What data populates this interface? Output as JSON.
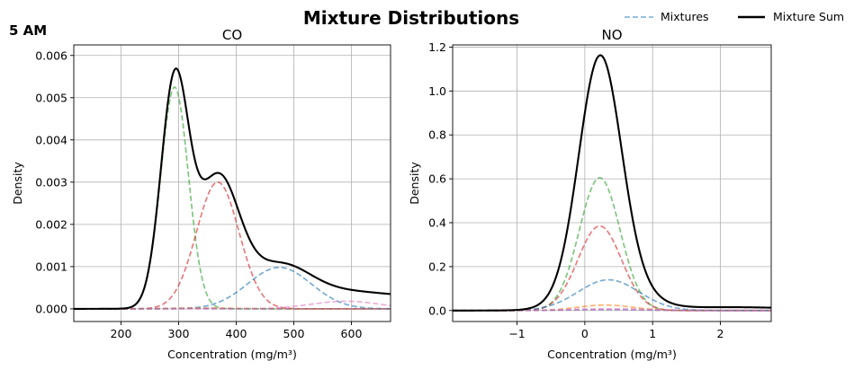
{
  "figure": {
    "title": "Mixture Distributions",
    "corner_label": "5 AM",
    "legend": [
      {
        "label": "Mixtures",
        "style": "dashed",
        "color": "#1f77b4"
      },
      {
        "label": "Mixture Sum",
        "style": "solid",
        "color": "#000000"
      }
    ]
  },
  "chart_data": [
    {
      "type": "line",
      "title": "CO",
      "xlabel": "Concentration (mg/m³)",
      "ylabel": "Density",
      "xlim": [
        118,
        668
      ],
      "ylim": [
        -0.0003,
        0.00625
      ],
      "xticks": [
        200,
        300,
        400,
        500,
        600
      ],
      "xtick_labels": [
        "200",
        "300",
        "400",
        "500",
        "600"
      ],
      "yticks": [
        0,
        0.001,
        0.002,
        0.003,
        0.004,
        0.005,
        0.006
      ],
      "ytick_labels": [
        "0.000",
        "0.001",
        "0.002",
        "0.003",
        "0.004",
        "0.005",
        "0.006"
      ],
      "grid": true,
      "components": [
        {
          "mean": 293,
          "sd": 24,
          "peak": 0.00525,
          "color": "#2ca02c"
        },
        {
          "mean": 368,
          "sd": 37,
          "peak": 0.003,
          "color": "#d62728"
        },
        {
          "mean": 475,
          "sd": 55,
          "peak": 0.00098,
          "color": "#1f77b4"
        },
        {
          "mean": 590,
          "sd": 60,
          "peak": 0.00018,
          "color": "#e377c2"
        },
        {
          "mean": 340,
          "sd": 60,
          "peak": 2e-05,
          "color": "#ff7f0e"
        },
        {
          "mean": 320,
          "sd": 60,
          "peak": 1e-05,
          "color": "#9467bd"
        }
      ],
      "sum_tail": {
        "mean": 700,
        "sd": 120,
        "peak": 0.00028
      }
    },
    {
      "type": "line",
      "title": "NO",
      "xlabel": "Concentration (mg/m³)",
      "ylabel": "Density",
      "xlim": [
        -1.95,
        2.75
      ],
      "ylim": [
        -0.05,
        1.21
      ],
      "xticks": [
        -1,
        0,
        1,
        2
      ],
      "xtick_labels": [
        "−1",
        "0",
        "1",
        "2"
      ],
      "yticks": [
        0,
        0.2,
        0.4,
        0.6,
        0.8,
        1.0,
        1.2
      ],
      "ytick_labels": [
        "0.0",
        "0.2",
        "0.4",
        "0.6",
        "0.8",
        "1.0",
        "1.2"
      ],
      "grid": true,
      "components": [
        {
          "mean": 0.22,
          "sd": 0.3,
          "peak": 0.605,
          "color": "#2ca02c"
        },
        {
          "mean": 0.22,
          "sd": 0.32,
          "peak": 0.385,
          "color": "#d62728"
        },
        {
          "mean": 0.35,
          "sd": 0.45,
          "peak": 0.14,
          "color": "#1f77b4"
        },
        {
          "mean": 0.3,
          "sd": 0.4,
          "peak": 0.025,
          "color": "#ff7f0e"
        },
        {
          "mean": 0.4,
          "sd": 0.6,
          "peak": 0.008,
          "color": "#e377c2"
        },
        {
          "mean": 0.3,
          "sd": 0.5,
          "peak": 0.004,
          "color": "#9467bd"
        }
      ],
      "sum_tail": {
        "mean": 2.2,
        "sd": 1.0,
        "peak": 0.015
      }
    }
  ]
}
